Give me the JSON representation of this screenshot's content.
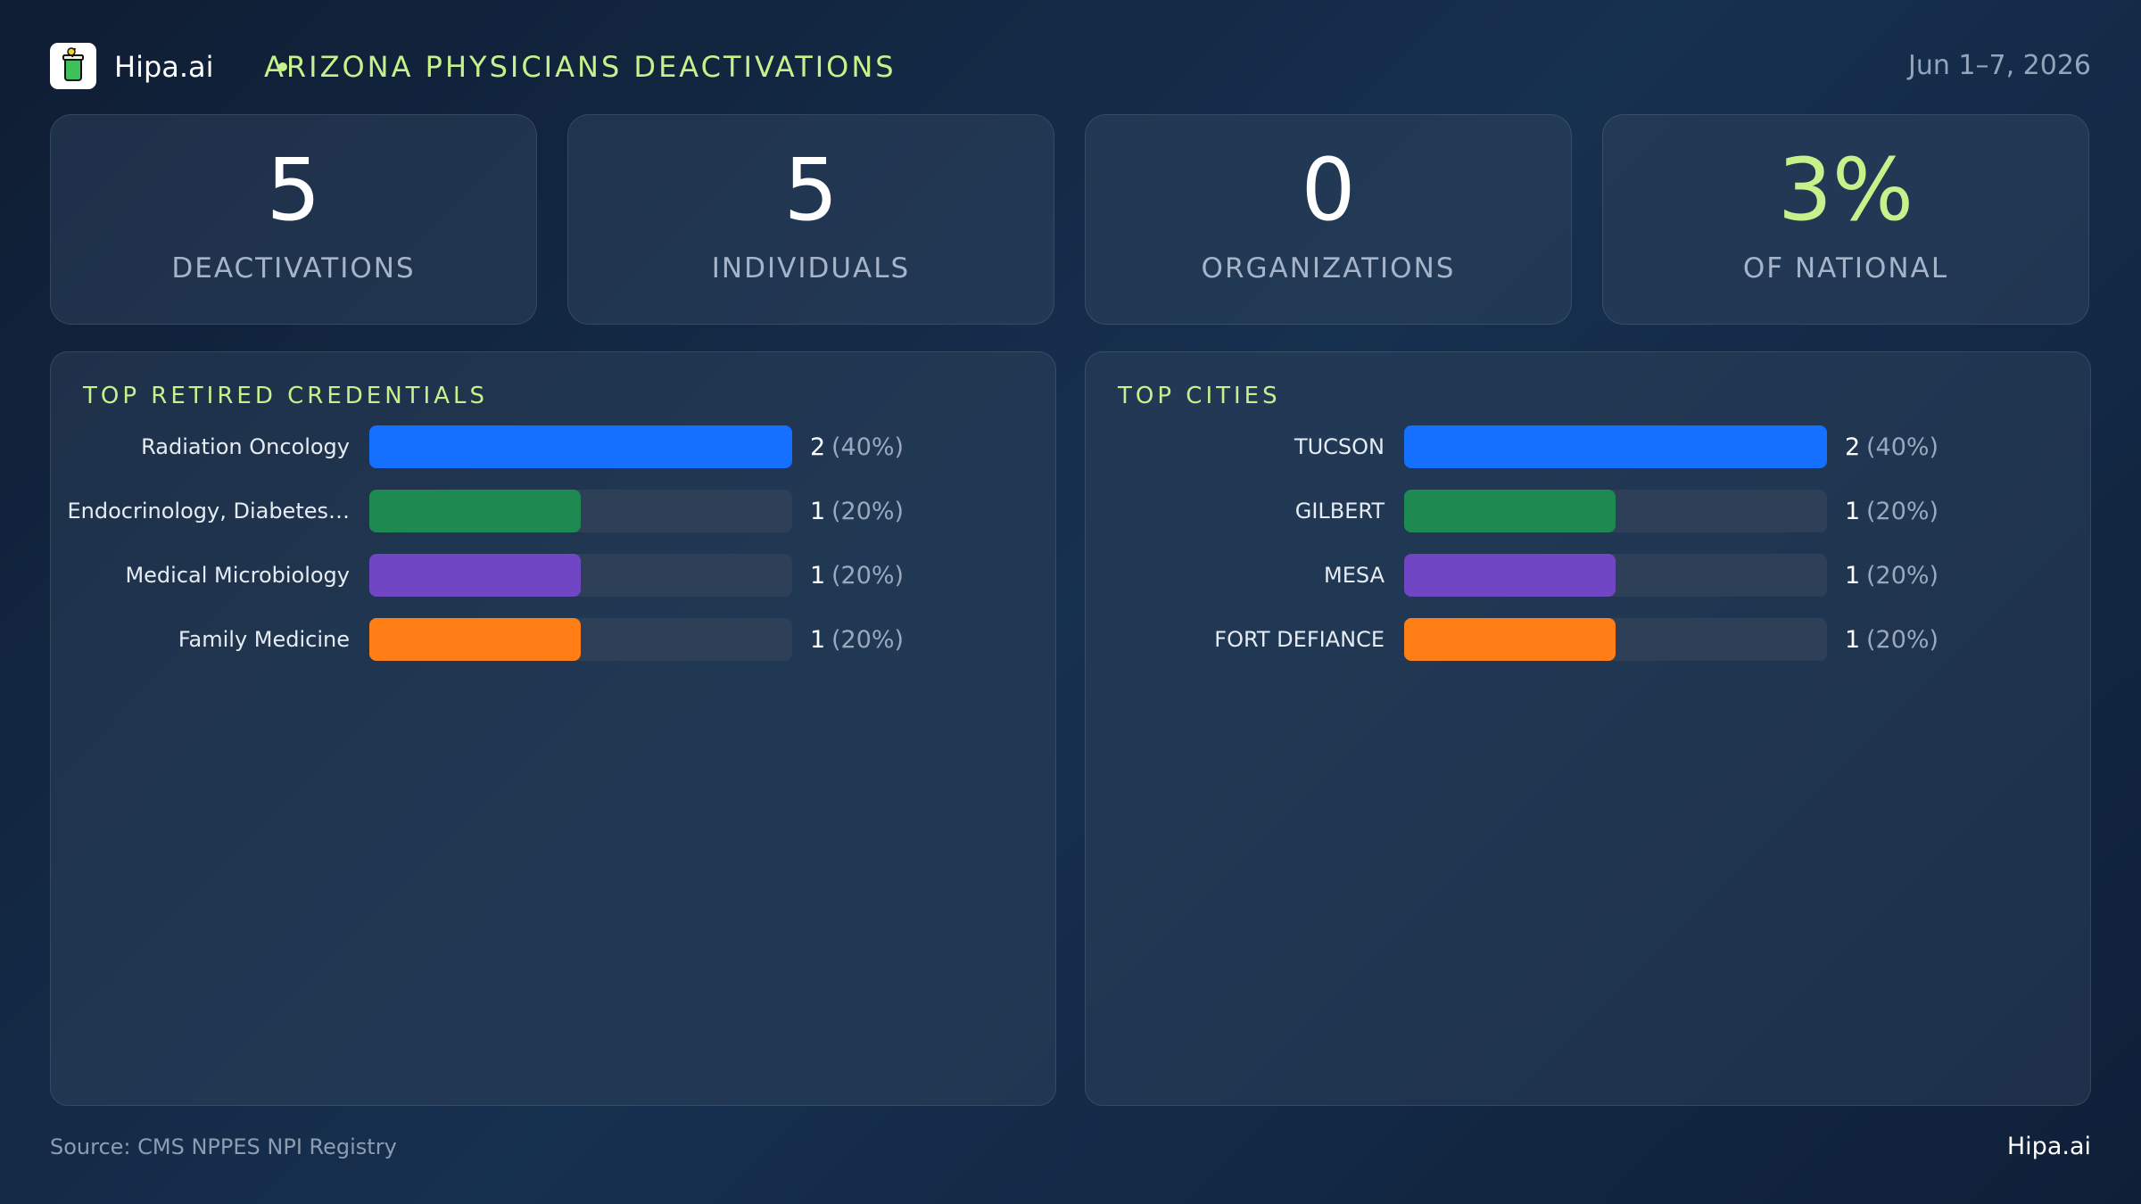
{
  "header": {
    "brand": "Hipa.ai",
    "report_title": "ARIZONA PHYSICIANS DEACTIVATIONS",
    "date": "Jun 1–7, 2026",
    "logo_icon": "cup-icon"
  },
  "stats": [
    {
      "value": "5",
      "label": "DEACTIVATIONS"
    },
    {
      "value": "5",
      "label": "INDIVIDUALS"
    },
    {
      "value": "0",
      "label": "ORGANIZATIONS"
    },
    {
      "value": "3%",
      "label": "OF NATIONAL"
    }
  ],
  "colors": {
    "accent": "#c6f28c",
    "series": [
      "#1570ff",
      "#1e8a52",
      "#7046c4",
      "#ff7e16"
    ],
    "track": "#2d4058"
  },
  "chart_data": [
    {
      "type": "bar",
      "title": "TOP RETIRED CREDENTIALS",
      "categories": [
        "Radiation Oncology",
        "Endocrinology, Diabetes…",
        "Medical Microbiology",
        "Family Medicine"
      ],
      "values": [
        2,
        1,
        1,
        1
      ],
      "value_labels": [
        "2",
        "1",
        "1",
        "1"
      ],
      "percent_labels": [
        "(40%)",
        "(20%)",
        "(20%)",
        "(20%)"
      ],
      "xlim": [
        0,
        2
      ]
    },
    {
      "type": "bar",
      "title": "TOP CITIES",
      "categories": [
        "TUCSON",
        "GILBERT",
        "MESA",
        "FORT DEFIANCE"
      ],
      "values": [
        2,
        1,
        1,
        1
      ],
      "value_labels": [
        "2",
        "1",
        "1",
        "1"
      ],
      "percent_labels": [
        "(40%)",
        "(20%)",
        "(20%)",
        "(20%)"
      ],
      "xlim": [
        0,
        2
      ]
    }
  ],
  "footer": {
    "source": "Source: CMS NPPES NPI Registry",
    "brand": "Hipa.ai"
  }
}
